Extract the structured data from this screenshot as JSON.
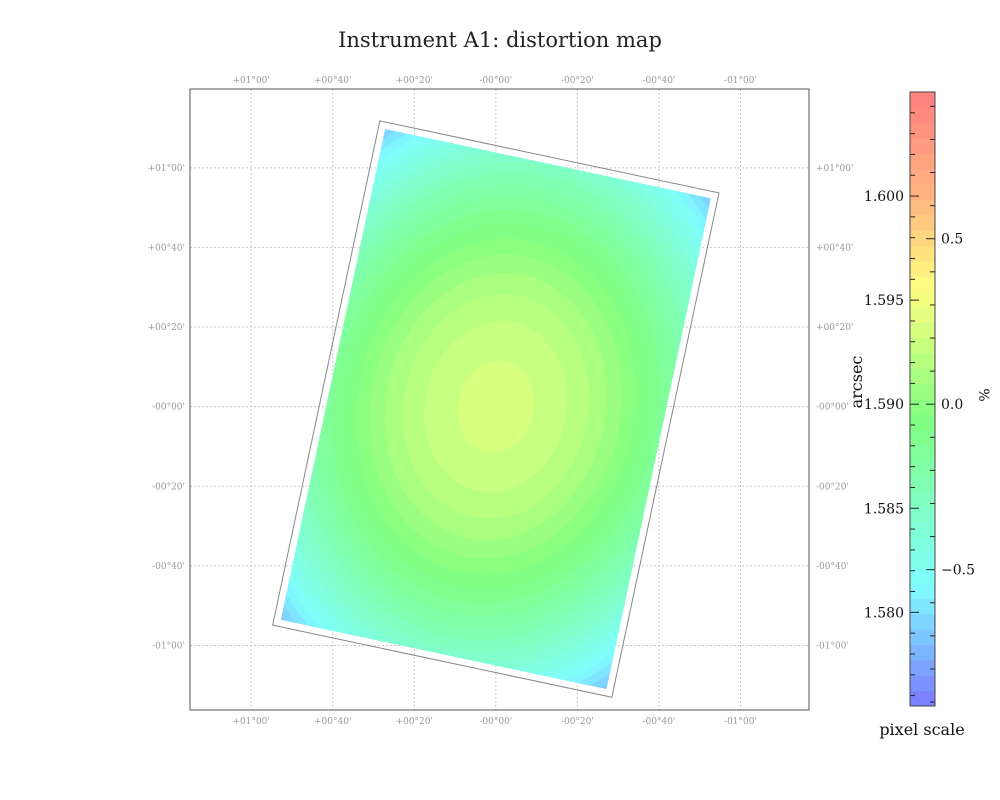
{
  "chart_data": {
    "type": "heatmap",
    "title": "Instrument A1: distortion map",
    "xticks": [
      "+01°00'",
      "+00°40'",
      "+00°20'",
      "-00°00'",
      "-00°20'",
      "-00°40'",
      "-01°00'"
    ],
    "yticks": [
      "+01°00'",
      "+00°40'",
      "+00°20'",
      "-00°00'",
      "-00°20'",
      "-00°40'",
      "-01°00'"
    ],
    "x_range_deg": [
      1.25,
      -1.28
    ],
    "y_range_deg": [
      1.33,
      -1.27
    ],
    "grid": true,
    "right_axis_label": "arcsec",
    "footprint": {
      "rotation_deg": 12,
      "center_deg": [
        0.0,
        -0.01
      ],
      "width_deg": 1.36,
      "height_deg": 2.1,
      "peak_center_deg": [
        0.0,
        0.0
      ],
      "peak_value_arcsec": 1.5935,
      "corner_value_arcsec": 1.5788
    },
    "colorbar": {
      "label": "pixel scale",
      "range_arcsec": [
        1.5755,
        1.605
      ],
      "left_ticks": [
        "1.600",
        "1.595",
        "1.590",
        "1.585",
        "1.580"
      ],
      "left_tick_values": [
        1.6,
        1.595,
        1.59,
        1.585,
        1.58
      ],
      "right_unit": "%",
      "right_ticks": [
        "0.5",
        "0.0",
        "−0.5"
      ],
      "right_tick_values": [
        0.5,
        0.0,
        -0.5
      ],
      "reference_arcsec": 1.59,
      "levels": 40
    }
  }
}
